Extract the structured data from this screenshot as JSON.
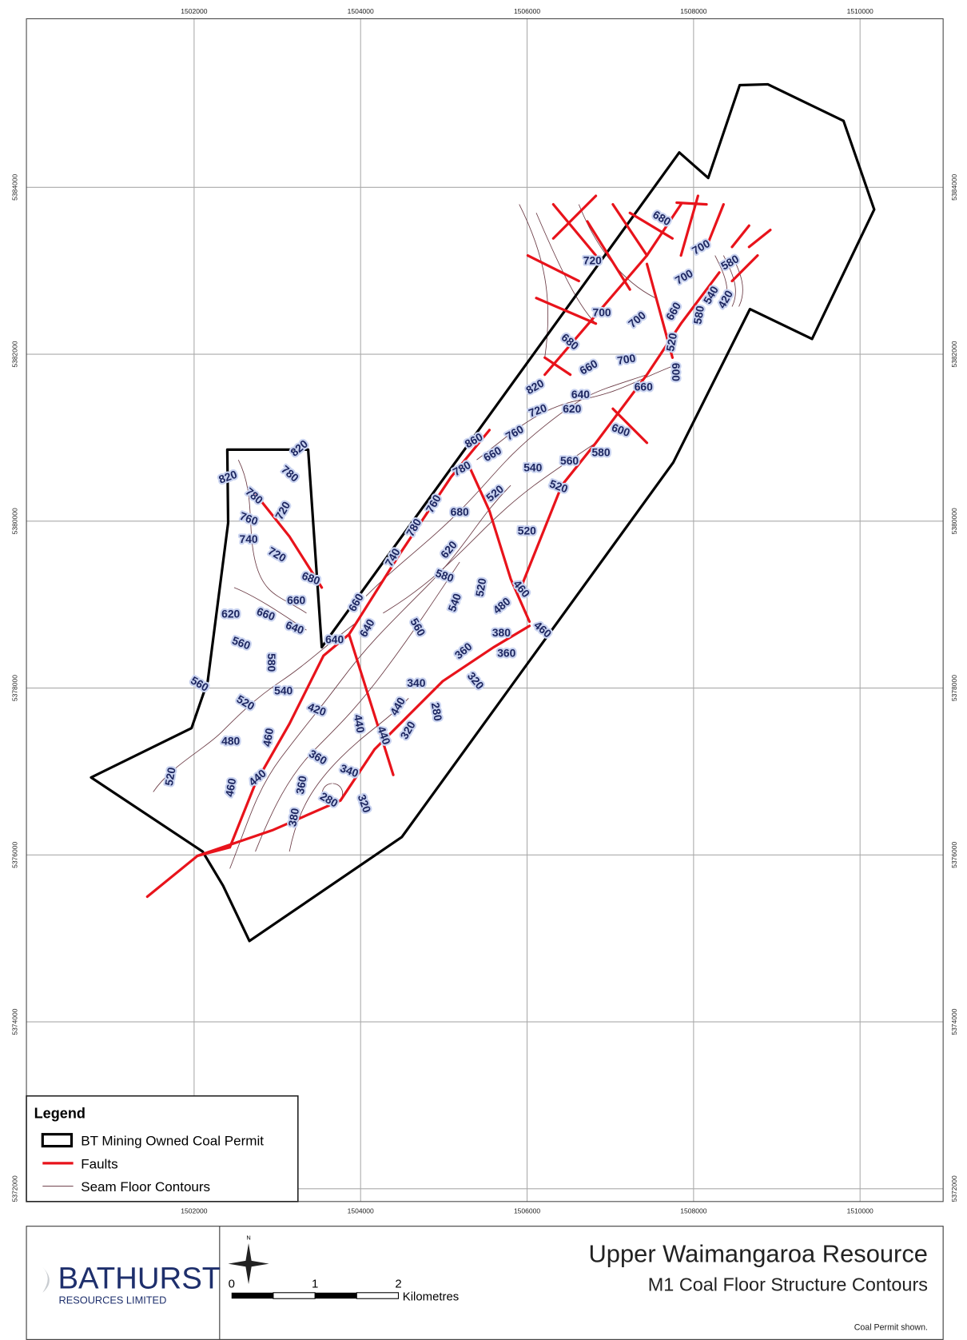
{
  "grid": {
    "eastings": [
      1502000,
      1504000,
      1506000,
      1508000,
      1510000
    ],
    "northings": [
      5384000,
      5382000,
      5380000,
      5378000,
      5376000,
      5374000,
      5372000
    ]
  },
  "contour_labels": [
    820,
    820,
    780,
    780,
    720,
    760,
    740,
    720,
    680,
    660,
    620,
    660,
    640,
    560,
    580,
    640,
    640,
    660,
    540,
    560,
    520,
    420,
    480,
    460,
    520,
    460,
    440,
    360,
    340,
    360,
    380,
    280,
    320,
    440,
    440,
    440,
    320,
    340,
    280,
    320,
    360,
    360,
    380,
    480,
    460,
    460,
    520,
    540,
    560,
    580,
    620,
    740,
    780,
    760,
    780,
    680,
    860,
    660,
    760,
    720,
    820,
    620,
    640,
    660,
    680,
    700,
    720,
    700,
    700,
    660,
    600,
    600,
    580,
    560,
    540,
    520,
    520,
    520,
    520,
    660,
    580,
    540,
    420,
    580,
    700,
    700,
    680
  ],
  "legend": {
    "title": "Legend",
    "items": [
      "BT Mining Owned Coal Permit",
      "Faults",
      "Seam Floor Contours"
    ]
  },
  "logo": {
    "name": "BATHURST",
    "subtitle": "RESOURCES LIMITED"
  },
  "north_arrow": "N",
  "scale_bar": {
    "ticks": [
      0,
      1,
      2
    ],
    "unit": "Kilometres"
  },
  "title": "Upper Waimangaroa Resource",
  "subtitle": "M1 Coal Floor Structure Contours",
  "note": "Coal Permit shown."
}
